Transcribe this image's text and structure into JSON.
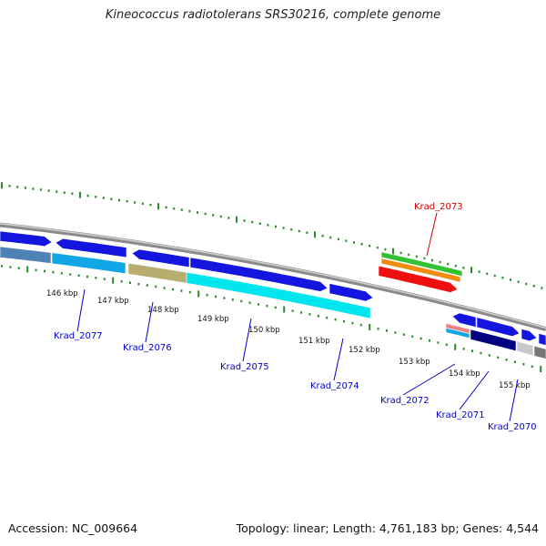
{
  "title": "Kineococcus radiotolerans SRS30216, complete genome",
  "footer": {
    "accession": "Accession: NC_009664",
    "summary": "Topology: linear; Length: 4,761,183 bp; Genes: 4,544"
  },
  "scale_ticks": [
    "146 kbp",
    "147 kbp",
    "148 kbp",
    "149 kbp",
    "150 kbp",
    "151 kbp",
    "152 kbp",
    "153 kbp",
    "154 kbp",
    "155 kbp"
  ],
  "gene_labels": [
    "Krad_2077",
    "Krad_2076",
    "Krad_2075",
    "Krad_2074",
    "Krad_2073",
    "Krad_2072",
    "Krad_2071",
    "Krad_2070"
  ],
  "colors": {
    "backbone": "#8a8a8a",
    "forward_arrow": "#1515e0",
    "tick": "#2a8a2a",
    "label_blue": "#0000cc",
    "label_red": "#cc0000",
    "cyan": "#00e5ee",
    "sky": "#11a6e6",
    "steelblue": "#4f82b4",
    "khaki": "#b8ad6e",
    "green": "#33c233",
    "orange": "#f08c10",
    "red": "#ee1010",
    "pink": "#f08080",
    "navy": "#000080",
    "silver": "#c8c8c8"
  }
}
